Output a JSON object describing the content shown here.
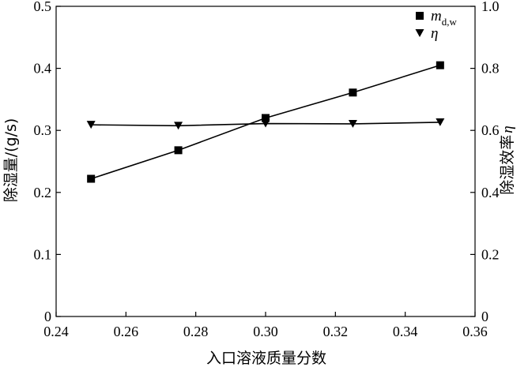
{
  "chart_data": {
    "type": "line",
    "x": [
      0.25,
      0.275,
      0.3,
      0.325,
      0.35
    ],
    "xlim": [
      0.24,
      0.36
    ],
    "xticks": [
      "0.24",
      "0.26",
      "0.28",
      "0.30",
      "0.32",
      "0.34",
      "0.36"
    ],
    "xtick_values": [
      0.24,
      0.26,
      0.28,
      0.3,
      0.32,
      0.34,
      0.36
    ],
    "xlabel": "入口溶液质量分数",
    "y_left": {
      "label": "除湿量/(g/s)",
      "lim": [
        0,
        0.5
      ],
      "ticks": [
        "0",
        "0.1",
        "0.2",
        "0.3",
        "0.4",
        "0.5"
      ],
      "tick_values": [
        0,
        0.1,
        0.2,
        0.3,
        0.4,
        0.5
      ]
    },
    "y_right": {
      "label": "除湿效率",
      "label_symbol": "η",
      "lim": [
        0,
        1.0
      ],
      "ticks": [
        "0",
        "0.2",
        "0.4",
        "0.6",
        "0.8",
        "1.0"
      ],
      "tick_values": [
        0,
        0.2,
        0.4,
        0.6,
        0.8,
        1.0
      ]
    },
    "series": [
      {
        "name": "m",
        "name_sub": "d,w",
        "axis": "left",
        "marker": "square",
        "values": [
          0.222,
          0.268,
          0.32,
          0.361,
          0.405
        ]
      },
      {
        "name": "η",
        "axis": "right",
        "marker": "triangle-down",
        "values": [
          0.618,
          0.615,
          0.622,
          0.621,
          0.626
        ]
      }
    ],
    "grid": false,
    "legend_position": "top-right",
    "colors": {
      "line": "#000000"
    }
  }
}
